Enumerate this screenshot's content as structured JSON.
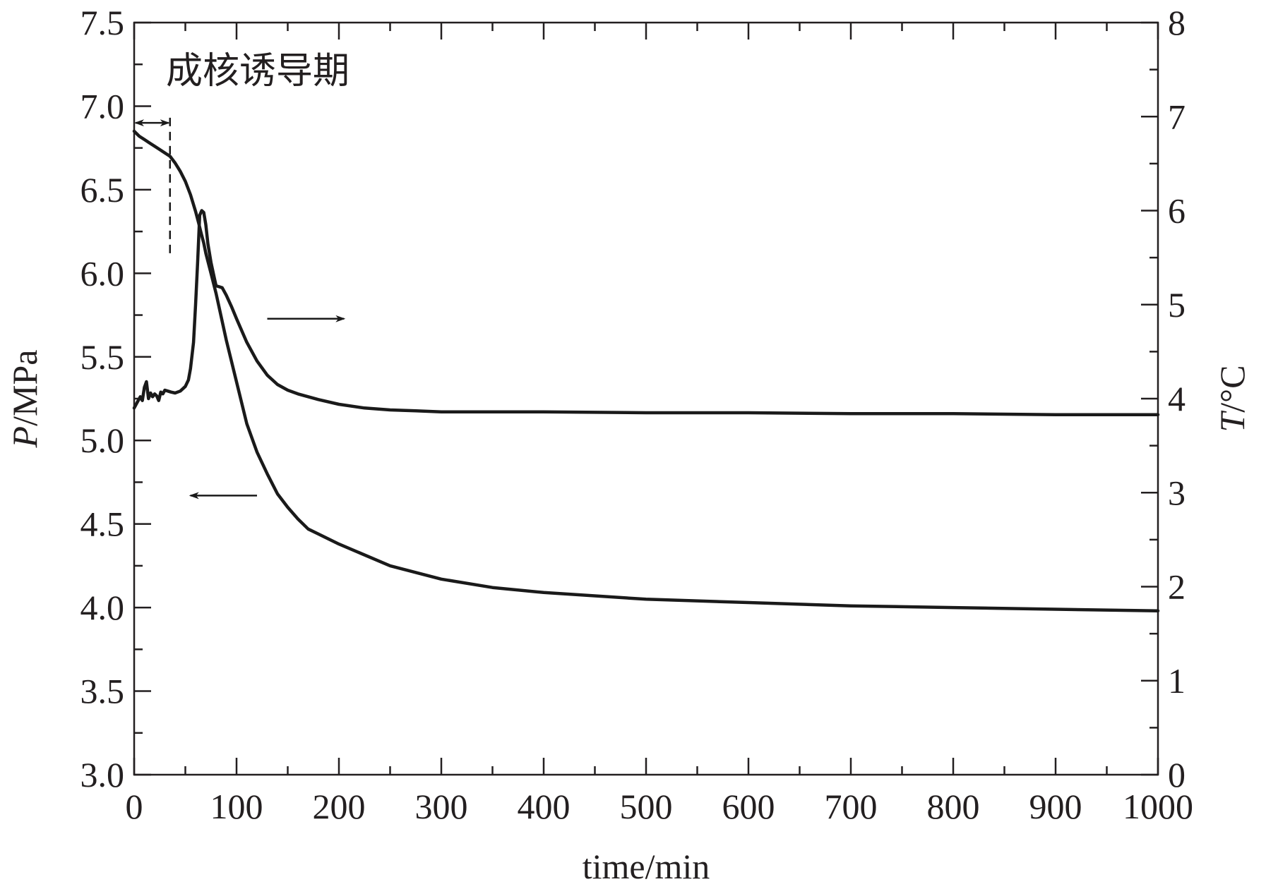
{
  "chart_data": {
    "type": "line",
    "title": "",
    "xlabel": "time/min",
    "ylabel_left": {
      "italic": "P",
      "rest": "/MPa"
    },
    "ylabel_right": {
      "italic": "T",
      "rest": "/°C"
    },
    "xlim": [
      0,
      1000
    ],
    "ylim_left": [
      3.0,
      7.5
    ],
    "ylim_right": [
      0,
      8
    ],
    "x_ticks": [
      "0",
      "100",
      "200",
      "300",
      "400",
      "500",
      "600",
      "700",
      "800",
      "900",
      "1000"
    ],
    "y_left_ticks": [
      "3.0",
      "3.5",
      "4.0",
      "4.5",
      "5.0",
      "5.5",
      "6.0",
      "6.5",
      "7.0",
      "7.5"
    ],
    "y_right_ticks": [
      "0",
      "1",
      "2",
      "3",
      "4",
      "5",
      "6",
      "7",
      "8"
    ],
    "annotation": {
      "label": "成核诱导期",
      "induction_end_x": 35,
      "dashed_from_y": 6.12,
      "dashed_to_y": 6.95,
      "arrow_y": 6.9
    },
    "pressure_arrow": {
      "from_x": 120,
      "to_x": 55,
      "y": 4.67
    },
    "temperature_arrow": {
      "from_x": 130,
      "to_x": 205,
      "y": 4.85
    },
    "series": [
      {
        "name": "pressure",
        "axis": "left",
        "x": [
          0,
          5,
          10,
          15,
          20,
          25,
          30,
          35,
          40,
          45,
          50,
          55,
          60,
          63,
          65,
          68,
          70,
          75,
          80,
          90,
          100,
          110,
          120,
          130,
          140,
          150,
          160,
          170,
          180,
          200,
          250,
          300,
          350,
          400,
          500,
          600,
          700,
          800,
          900,
          1000
        ],
        "values": [
          6.85,
          6.82,
          6.8,
          6.78,
          6.76,
          6.74,
          6.72,
          6.7,
          6.66,
          6.61,
          6.55,
          6.47,
          6.37,
          6.3,
          6.25,
          6.18,
          6.12,
          6.0,
          5.88,
          5.6,
          5.35,
          5.1,
          4.93,
          4.8,
          4.68,
          4.6,
          4.53,
          4.47,
          4.44,
          4.38,
          4.25,
          4.17,
          4.12,
          4.09,
          4.05,
          4.03,
          4.01,
          4.0,
          3.99,
          3.98
        ]
      },
      {
        "name": "temperature",
        "axis": "right",
        "x": [
          0,
          3,
          6,
          8,
          10,
          12,
          14,
          16,
          18,
          20,
          22,
          24,
          26,
          28,
          30,
          33,
          36,
          40,
          45,
          50,
          53,
          55,
          58,
          60,
          62,
          64,
          66,
          68,
          70,
          72,
          75,
          78,
          80,
          83,
          86,
          90,
          95,
          100,
          110,
          120,
          130,
          140,
          150,
          160,
          170,
          180,
          200,
          225,
          250,
          275,
          300,
          325,
          350,
          400,
          500,
          600,
          700,
          800,
          900,
          1000
        ],
        "values": [
          3.9,
          3.96,
          4.02,
          3.98,
          4.12,
          4.18,
          4.0,
          4.06,
          4.02,
          4.05,
          4.03,
          3.98,
          4.07,
          4.05,
          4.09,
          4.08,
          4.07,
          4.06,
          4.08,
          4.13,
          4.2,
          4.32,
          4.6,
          5.0,
          5.45,
          5.95,
          6.0,
          5.98,
          5.85,
          5.65,
          5.45,
          5.3,
          5.2,
          5.19,
          5.18,
          5.1,
          4.98,
          4.85,
          4.6,
          4.4,
          4.25,
          4.15,
          4.09,
          4.05,
          4.02,
          3.99,
          3.94,
          3.9,
          3.88,
          3.87,
          3.86,
          3.86,
          3.86,
          3.86,
          3.85,
          3.85,
          3.84,
          3.84,
          3.83,
          3.83
        ]
      }
    ]
  }
}
